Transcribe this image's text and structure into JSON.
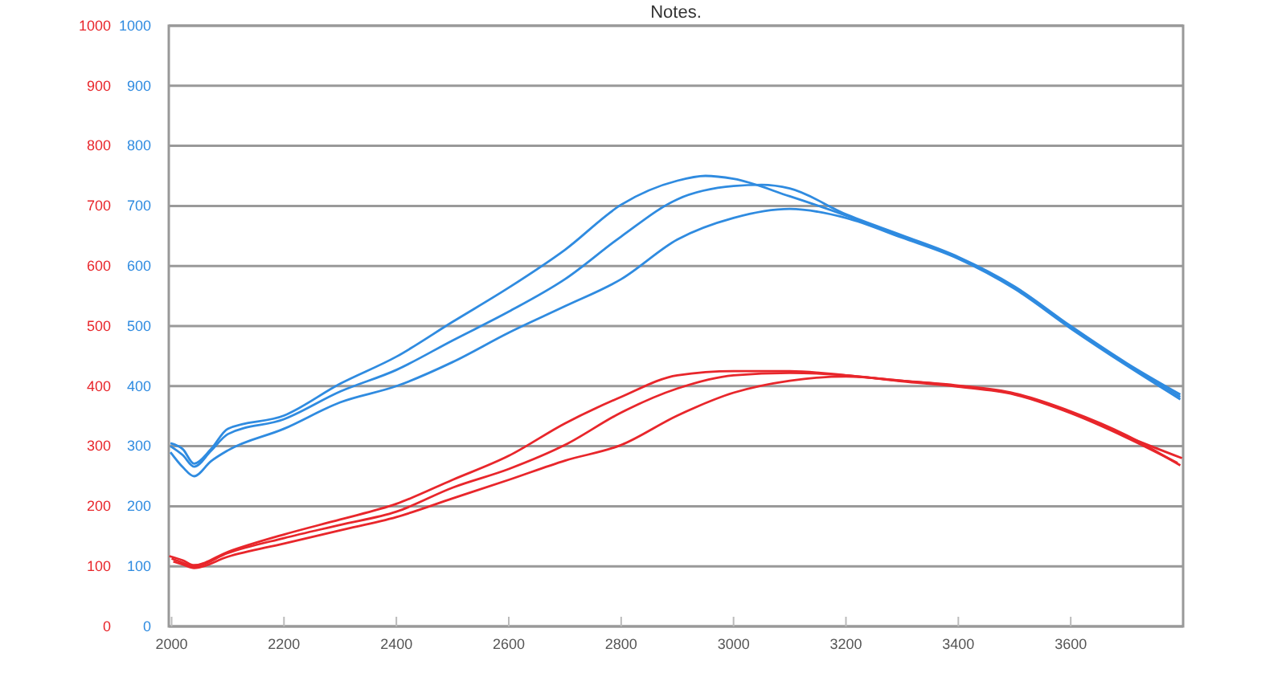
{
  "chart_data": {
    "type": "line",
    "title": "Notes.",
    "xlim": [
      1995,
      3800
    ],
    "xticks": [
      2000,
      2200,
      2400,
      2600,
      2800,
      3000,
      3200,
      3400,
      3600
    ],
    "ylim": [
      0,
      1000
    ],
    "yticks": [
      0,
      100,
      200,
      300,
      400,
      500,
      600,
      700,
      800,
      900,
      1000
    ],
    "y2lim": [
      0,
      1000
    ],
    "y2ticks": [
      0,
      100,
      200,
      300,
      400,
      500,
      600,
      700,
      800,
      900,
      1000
    ],
    "grid": "y",
    "marker": "none",
    "line_style": "solid",
    "series": [
      {
        "color": "#2f8be0",
        "axis": "y2",
        "x": [
          1998,
          2020,
          2040,
          2070,
          2100,
          2200,
          2300,
          2400,
          2500,
          2600,
          2700,
          2800,
          2900,
          2950,
          3000,
          3100,
          3200,
          3300,
          3400,
          3500,
          3600,
          3700,
          3795
        ],
        "values": [
          305,
          295,
          271,
          295,
          329,
          351,
          404,
          449,
          507,
          564,
          627,
          702,
          742,
          750,
          745,
          716,
          684,
          649,
          613,
          564,
          498,
          436,
          382
        ]
      },
      {
        "color": "#2f8be0",
        "axis": "y2",
        "x": [
          1998,
          2020,
          2040,
          2070,
          2100,
          2200,
          2300,
          2400,
          2500,
          2600,
          2700,
          2800,
          2900,
          3000,
          3050,
          3100,
          3200,
          3300,
          3400,
          3500,
          3600,
          3700,
          3795
        ],
        "values": [
          300,
          285,
          266,
          292,
          320,
          345,
          391,
          427,
          476,
          524,
          578,
          649,
          711,
          733,
          735,
          729,
          686,
          651,
          615,
          566,
          500,
          438,
          386
        ]
      },
      {
        "color": "#2f8be0",
        "axis": "y2",
        "x": [
          1998,
          2020,
          2040,
          2070,
          2100,
          2200,
          2300,
          2400,
          2500,
          2600,
          2700,
          2800,
          2900,
          3000,
          3100,
          3200,
          3300,
          3400,
          3500,
          3600,
          3700,
          3795
        ],
        "values": [
          290,
          265,
          250,
          275,
          293,
          329,
          373,
          400,
          440,
          489,
          533,
          578,
          644,
          680,
          695,
          680,
          647,
          612,
          562,
          496,
          434,
          378
        ]
      },
      {
        "color": "#e8262b",
        "axis": "y",
        "x": [
          1996,
          2020,
          2040,
          2100,
          2200,
          2300,
          2400,
          2500,
          2600,
          2700,
          2800,
          2900,
          3000,
          3100,
          3200,
          3300,
          3400,
          3500,
          3600,
          3700,
          3798
        ],
        "values": [
          117,
          110,
          102,
          124,
          153,
          178,
          204,
          244,
          284,
          338,
          382,
          418,
          425,
          425,
          418,
          409,
          400,
          387,
          356,
          316,
          280
        ]
      },
      {
        "color": "#e8262b",
        "axis": "y",
        "x": [
          2000,
          2020,
          2040,
          2100,
          2200,
          2300,
          2400,
          2500,
          2600,
          2700,
          2800,
          2900,
          3000,
          3100,
          3200,
          3300,
          3400,
          3500,
          3600,
          3700,
          3790
        ],
        "values": [
          113,
          106,
          100,
          122,
          147,
          169,
          191,
          231,
          262,
          302,
          356,
          396,
          418,
          422,
          418,
          408,
          399,
          386,
          355,
          314,
          272
        ]
      },
      {
        "color": "#e8262b",
        "axis": "y",
        "x": [
          2003,
          2020,
          2040,
          2100,
          2200,
          2300,
          2400,
          2500,
          2600,
          2700,
          2800,
          2900,
          3000,
          3100,
          3200,
          3300,
          3400,
          3500,
          3600,
          3700,
          3795
        ],
        "values": [
          108,
          103,
          97,
          116,
          138,
          160,
          182,
          213,
          244,
          276,
          302,
          351,
          389,
          409,
          416,
          409,
          401,
          388,
          358,
          318,
          268
        ]
      }
    ]
  }
}
